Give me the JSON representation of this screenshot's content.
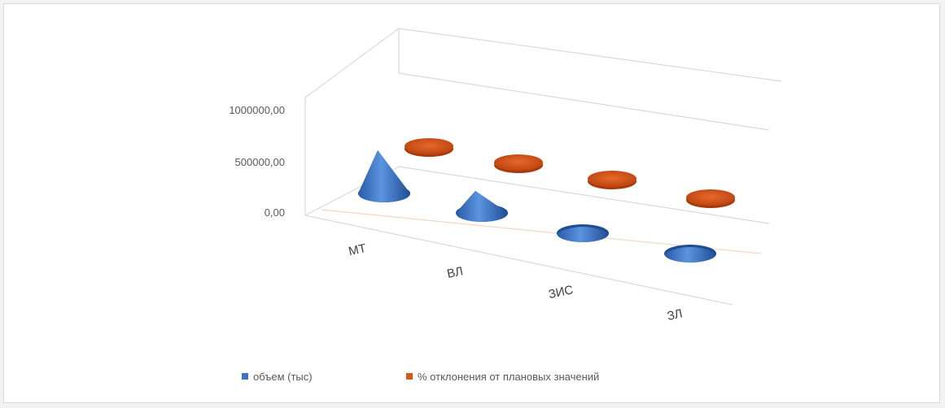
{
  "chart_data": {
    "type": "bar",
    "style": "3d-cone",
    "categories": [
      "МТ",
      "ВЛ",
      "ЗИС",
      "ЗЛ"
    ],
    "y_ticks": [
      "0,00",
      "500000,00",
      "1000000,00"
    ],
    "ylim": [
      0,
      1000000
    ],
    "grid": false,
    "legend_position": "bottom",
    "series": [
      {
        "name": "объем (тыс)",
        "color": "#3a72c4",
        "values": [
          430000,
          220000,
          60000,
          50000
        ]
      },
      {
        "name": "% отклонения от плановых значений",
        "color": "#d8561a",
        "values": [
          0,
          0,
          0,
          0
        ]
      }
    ]
  }
}
